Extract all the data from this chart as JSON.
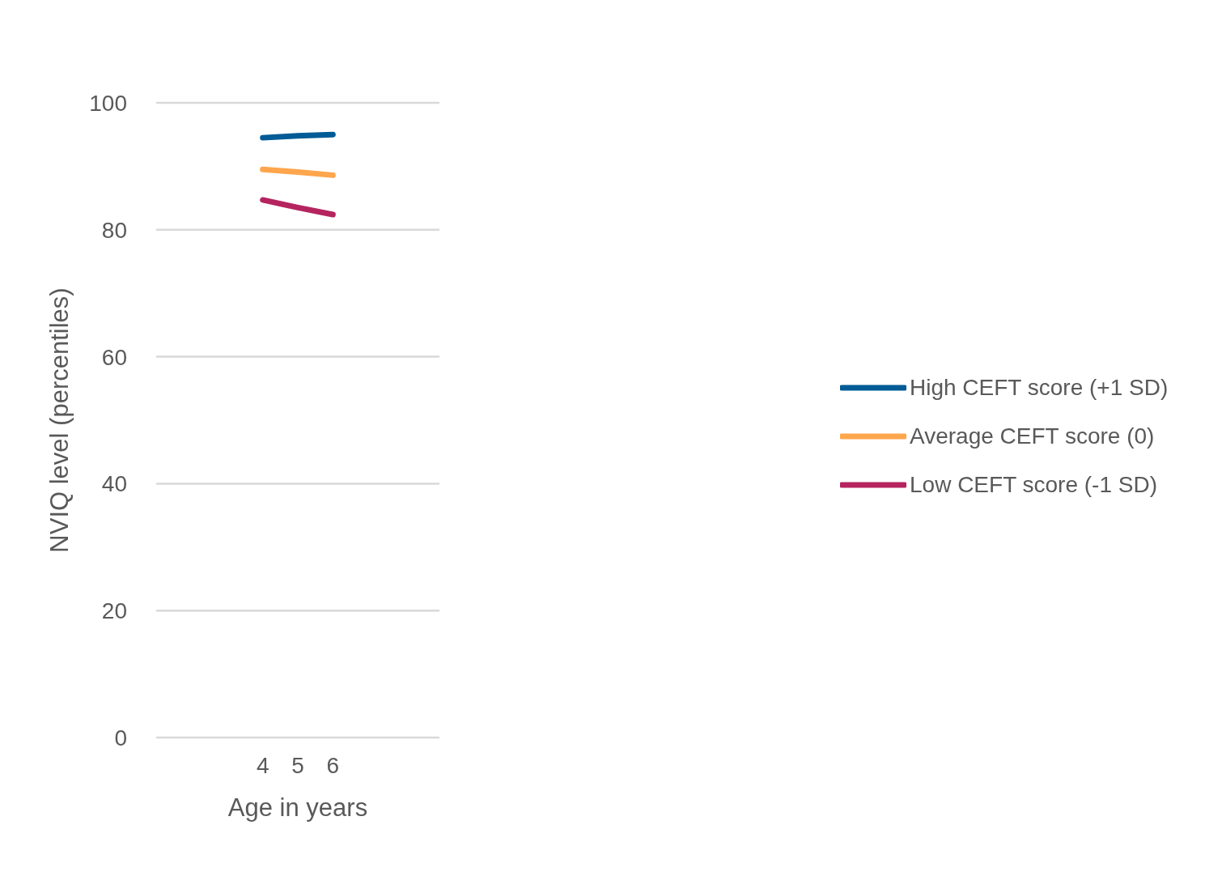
{
  "chart_data": {
    "type": "line",
    "xlabel": "Age in years",
    "ylabel": "NVIQ level (percentiles)",
    "categories": [
      "4",
      "5",
      "6"
    ],
    "series": [
      {
        "name": "High CEFT score (+1 SD)",
        "color": "#005b96",
        "values": [
          94.5,
          94.8,
          95
        ]
      },
      {
        "name": "Average CEFT score (0)",
        "color": "#ffa64d",
        "values": [
          89.5,
          89.1,
          88.6
        ]
      },
      {
        "name": "Low CEFT score (-1 SD)",
        "color": "#b5245f",
        "values": [
          84.7,
          83.5,
          82.4
        ]
      }
    ],
    "ylim": [
      0,
      100
    ],
    "yticks": [
      0,
      20,
      40,
      60,
      80,
      100
    ],
    "grid": "y",
    "legend": "right",
    "marker": "none",
    "line_style": "solid"
  }
}
